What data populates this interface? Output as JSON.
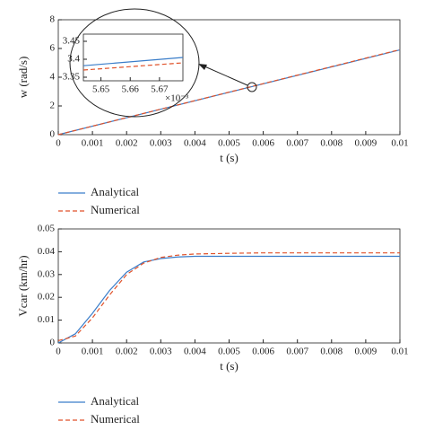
{
  "chart_data": [
    {
      "type": "line",
      "xlabel": "t (s)",
      "ylabel": "w (rad/s)",
      "x": [
        0,
        0.01
      ],
      "xlim": [
        0,
        0.01
      ],
      "ylim": [
        0,
        8
      ],
      "xticks": [
        0,
        0.001,
        0.002,
        0.003,
        0.004,
        0.005,
        0.006,
        0.007,
        0.008,
        0.009,
        0.01
      ],
      "yticks": [
        0,
        2,
        4,
        6,
        8
      ],
      "series": [
        {
          "name": "Analytical",
          "color": "#3a7dc9",
          "dash": false,
          "values": [
            0,
            5.9
          ]
        },
        {
          "name": "Numerical",
          "color": "#e0522a",
          "dash": true,
          "values": [
            0,
            5.92
          ]
        }
      ]
    },
    {
      "type": "line",
      "annotation": "×10⁻³",
      "x": [
        5.644,
        5.678
      ],
      "xlim": [
        5.644,
        5.678
      ],
      "ylim": [
        3.34,
        3.47
      ],
      "xticks": [
        5.65,
        5.66,
        5.67
      ],
      "yticks": [
        3.35,
        3.4,
        3.45
      ],
      "series": [
        {
          "color": "#3a7dc9",
          "dash": false,
          "values": [
            3.382,
            3.405
          ]
        },
        {
          "color": "#e0522a",
          "dash": true,
          "values": [
            3.37,
            3.39
          ]
        }
      ]
    },
    {
      "type": "line",
      "xlabel": "t (s)",
      "ylabel": "Vcar (km/hr)",
      "x": [
        0,
        0.0005,
        0.001,
        0.0015,
        0.002,
        0.0025,
        0.003,
        0.0035,
        0.004,
        0.005,
        0.006,
        0.008,
        0.01
      ],
      "xlim": [
        0,
        0.01
      ],
      "ylim": [
        0,
        0.05
      ],
      "xticks": [
        0,
        0.001,
        0.002,
        0.003,
        0.004,
        0.005,
        0.006,
        0.007,
        0.008,
        0.009,
        0.01
      ],
      "yticks": [
        0,
        0.01,
        0.02,
        0.03,
        0.04,
        0.05
      ],
      "series": [
        {
          "name": "Analytical",
          "color": "#3a7dc9",
          "dash": false,
          "values": [
            0,
            0.004,
            0.013,
            0.023,
            0.031,
            0.0355,
            0.037,
            0.0377,
            0.038,
            0.038,
            0.038,
            0.038,
            0.038
          ]
        },
        {
          "name": "Numerical",
          "color": "#e0522a",
          "dash": true,
          "values": [
            0.001,
            0.003,
            0.011,
            0.021,
            0.03,
            0.035,
            0.0375,
            0.0385,
            0.039,
            0.0393,
            0.0395,
            0.0395,
            0.0395
          ]
        }
      ]
    }
  ]
}
